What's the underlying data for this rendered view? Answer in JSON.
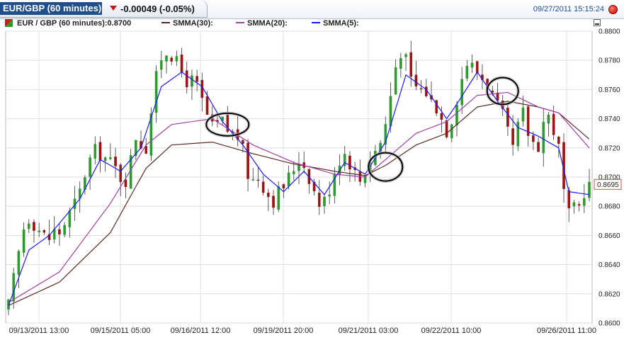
{
  "header": {
    "symbol_label": "EUR/GBP (60 minutes)",
    "change_text": "-0.00049 (-0.05%)",
    "datetime": "09/27/2011 15:15:24",
    "change_color": "#c0171c",
    "accent": "#1f4e8c"
  },
  "legend": {
    "main_label": "EUR / GBP (60 minutes):0.8700",
    "items": [
      {
        "label": "SMMA(30):",
        "color": "#5a2b25"
      },
      {
        "label": "SMMA(20):",
        "color": "#a23fa8"
      },
      {
        "label": "SMMA(5):",
        "color": "#1a1aff"
      }
    ]
  },
  "chart_data": {
    "type": "candlestick",
    "y_ticks": [
      "0.8600",
      "0.8620",
      "0.8640",
      "0.8660",
      "0.8680",
      "0.8700",
      "0.8720",
      "0.8740",
      "0.8760",
      "0.8780",
      "0.8800"
    ],
    "ylim": [
      0.86,
      0.88
    ],
    "x_labels": [
      "09/13/2011 13:00",
      "09/15/2011 05:00",
      "09/16/2011 12:00",
      "09/19/2011 20:00",
      "09/21/2011 03:00",
      "09/22/2011 10:00",
      "09/26/2011 11:00"
    ],
    "last_price_label": "0.8695",
    "last_price": 0.8695,
    "grid": true,
    "up_color": "#2d9a2d",
    "down_color": "#9b1414",
    "close_path": [
      [
        0,
        0.8612
      ],
      [
        1,
        0.863
      ],
      [
        2,
        0.8648
      ],
      [
        3,
        0.8665
      ],
      [
        4,
        0.8672
      ],
      [
        5,
        0.8668
      ],
      [
        6,
        0.8664
      ],
      [
        7,
        0.866
      ],
      [
        8,
        0.8658
      ],
      [
        9,
        0.8663
      ],
      [
        10,
        0.8662
      ],
      [
        11,
        0.8668
      ],
      [
        12,
        0.8675
      ],
      [
        13,
        0.8682
      ],
      [
        14,
        0.869
      ],
      [
        15,
        0.8702
      ],
      [
        16,
        0.8712
      ],
      [
        17,
        0.8718
      ],
      [
        18,
        0.8716
      ],
      [
        19,
        0.8713
      ],
      [
        20,
        0.871
      ],
      [
        21,
        0.8706
      ],
      [
        22,
        0.87
      ],
      [
        23,
        0.8698
      ],
      [
        24,
        0.8712
      ],
      [
        25,
        0.8728
      ],
      [
        26,
        0.8723
      ],
      [
        27,
        0.872
      ],
      [
        28,
        0.8745
      ],
      [
        29,
        0.8768
      ],
      [
        30,
        0.8782
      ],
      [
        31,
        0.8786
      ],
      [
        32,
        0.8784
      ],
      [
        33,
        0.8778
      ],
      [
        34,
        0.8772
      ],
      [
        35,
        0.8766
      ],
      [
        36,
        0.8766
      ],
      [
        37,
        0.8762
      ],
      [
        38,
        0.8752
      ],
      [
        39,
        0.8742
      ],
      [
        40,
        0.8734
      ],
      [
        41,
        0.8736
      ],
      [
        42,
        0.8738
      ],
      [
        43,
        0.8732
      ],
      [
        44,
        0.873
      ],
      [
        45,
        0.8728
      ],
      [
        46,
        0.8718
      ],
      [
        47,
        0.8702
      ],
      [
        48,
        0.8698
      ],
      [
        49,
        0.87
      ],
      [
        50,
        0.8694
      ],
      [
        51,
        0.8688
      ],
      [
        52,
        0.8684
      ],
      [
        53,
        0.869
      ],
      [
        54,
        0.8694
      ],
      [
        55,
        0.87
      ],
      [
        56,
        0.8706
      ],
      [
        57,
        0.8712
      ],
      [
        58,
        0.8708
      ],
      [
        59,
        0.87
      ],
      [
        60,
        0.869
      ],
      [
        61,
        0.8682
      ],
      [
        62,
        0.8684
      ],
      [
        63,
        0.8692
      ],
      [
        64,
        0.8704
      ],
      [
        65,
        0.8712
      ],
      [
        66,
        0.8716
      ],
      [
        67,
        0.871
      ],
      [
        68,
        0.8703
      ],
      [
        69,
        0.8698
      ],
      [
        70,
        0.8704
      ],
      [
        71,
        0.8712
      ],
      [
        72,
        0.8718
      ],
      [
        73,
        0.8724
      ],
      [
        74,
        0.8736
      ],
      [
        75,
        0.8756
      ],
      [
        76,
        0.8776
      ],
      [
        77,
        0.8786
      ],
      [
        78,
        0.878
      ],
      [
        79,
        0.8766
      ],
      [
        80,
        0.8762
      ],
      [
        81,
        0.876
      ],
      [
        82,
        0.8758
      ],
      [
        83,
        0.8752
      ],
      [
        84,
        0.8748
      ],
      [
        85,
        0.874
      ],
      [
        86,
        0.8732
      ],
      [
        87,
        0.874
      ],
      [
        88,
        0.8754
      ],
      [
        89,
        0.8768
      ],
      [
        90,
        0.8778
      ],
      [
        91,
        0.8776
      ],
      [
        92,
        0.8772
      ],
      [
        93,
        0.8768
      ],
      [
        94,
        0.8764
      ],
      [
        95,
        0.8756
      ],
      [
        96,
        0.8748
      ],
      [
        97,
        0.8742
      ],
      [
        98,
        0.873
      ],
      [
        99,
        0.872
      ],
      [
        100,
        0.8734
      ],
      [
        101,
        0.8744
      ],
      [
        102,
        0.873
      ],
      [
        103,
        0.8724
      ],
      [
        104,
        0.8722
      ],
      [
        105,
        0.8738
      ],
      [
        106,
        0.8742
      ],
      [
        107,
        0.8732
      ],
      [
        108,
        0.872
      ],
      [
        109,
        0.869
      ],
      [
        110,
        0.8674
      ],
      [
        111,
        0.8678
      ],
      [
        112,
        0.868
      ],
      [
        113,
        0.869
      ],
      [
        114,
        0.8695
      ]
    ],
    "smma30": [
      [
        0,
        0.8612
      ],
      [
        10,
        0.8628
      ],
      [
        20,
        0.8662
      ],
      [
        27,
        0.8706
      ],
      [
        32,
        0.8722
      ],
      [
        40,
        0.8724
      ],
      [
        48,
        0.8716
      ],
      [
        56,
        0.8709
      ],
      [
        64,
        0.8704
      ],
      [
        70,
        0.8701
      ],
      [
        74,
        0.8708
      ],
      [
        80,
        0.8722
      ],
      [
        86,
        0.873
      ],
      [
        92,
        0.8748
      ],
      [
        98,
        0.8752
      ],
      [
        104,
        0.8748
      ],
      [
        108,
        0.8744
      ],
      [
        114,
        0.8726
      ]
    ],
    "smma20": [
      [
        0,
        0.8614
      ],
      [
        10,
        0.8635
      ],
      [
        20,
        0.8682
      ],
      [
        27,
        0.8722
      ],
      [
        32,
        0.8736
      ],
      [
        40,
        0.874
      ],
      [
        48,
        0.8722
      ],
      [
        56,
        0.871
      ],
      [
        64,
        0.8702
      ],
      [
        70,
        0.87
      ],
      [
        74,
        0.8712
      ],
      [
        80,
        0.873
      ],
      [
        86,
        0.8738
      ],
      [
        92,
        0.8756
      ],
      [
        98,
        0.8758
      ],
      [
        104,
        0.8748
      ],
      [
        108,
        0.8744
      ],
      [
        114,
        0.872
      ]
    ],
    "smma5": [
      [
        0,
        0.8612
      ],
      [
        4,
        0.865
      ],
      [
        8,
        0.866
      ],
      [
        14,
        0.8685
      ],
      [
        18,
        0.8712
      ],
      [
        22,
        0.8704
      ],
      [
        26,
        0.872
      ],
      [
        30,
        0.8762
      ],
      [
        34,
        0.8772
      ],
      [
        38,
        0.8762
      ],
      [
        42,
        0.8738
      ],
      [
        46,
        0.8722
      ],
      [
        50,
        0.8702
      ],
      [
        54,
        0.869
      ],
      [
        58,
        0.8704
      ],
      [
        62,
        0.8688
      ],
      [
        66,
        0.871
      ],
      [
        70,
        0.8702
      ],
      [
        74,
        0.8724
      ],
      [
        78,
        0.877
      ],
      [
        82,
        0.876
      ],
      [
        86,
        0.874
      ],
      [
        88,
        0.875
      ],
      [
        92,
        0.8772
      ],
      [
        96,
        0.8752
      ],
      [
        100,
        0.8734
      ],
      [
        104,
        0.8728
      ],
      [
        108,
        0.872
      ],
      [
        110,
        0.869
      ],
      [
        114,
        0.8688
      ]
    ]
  }
}
